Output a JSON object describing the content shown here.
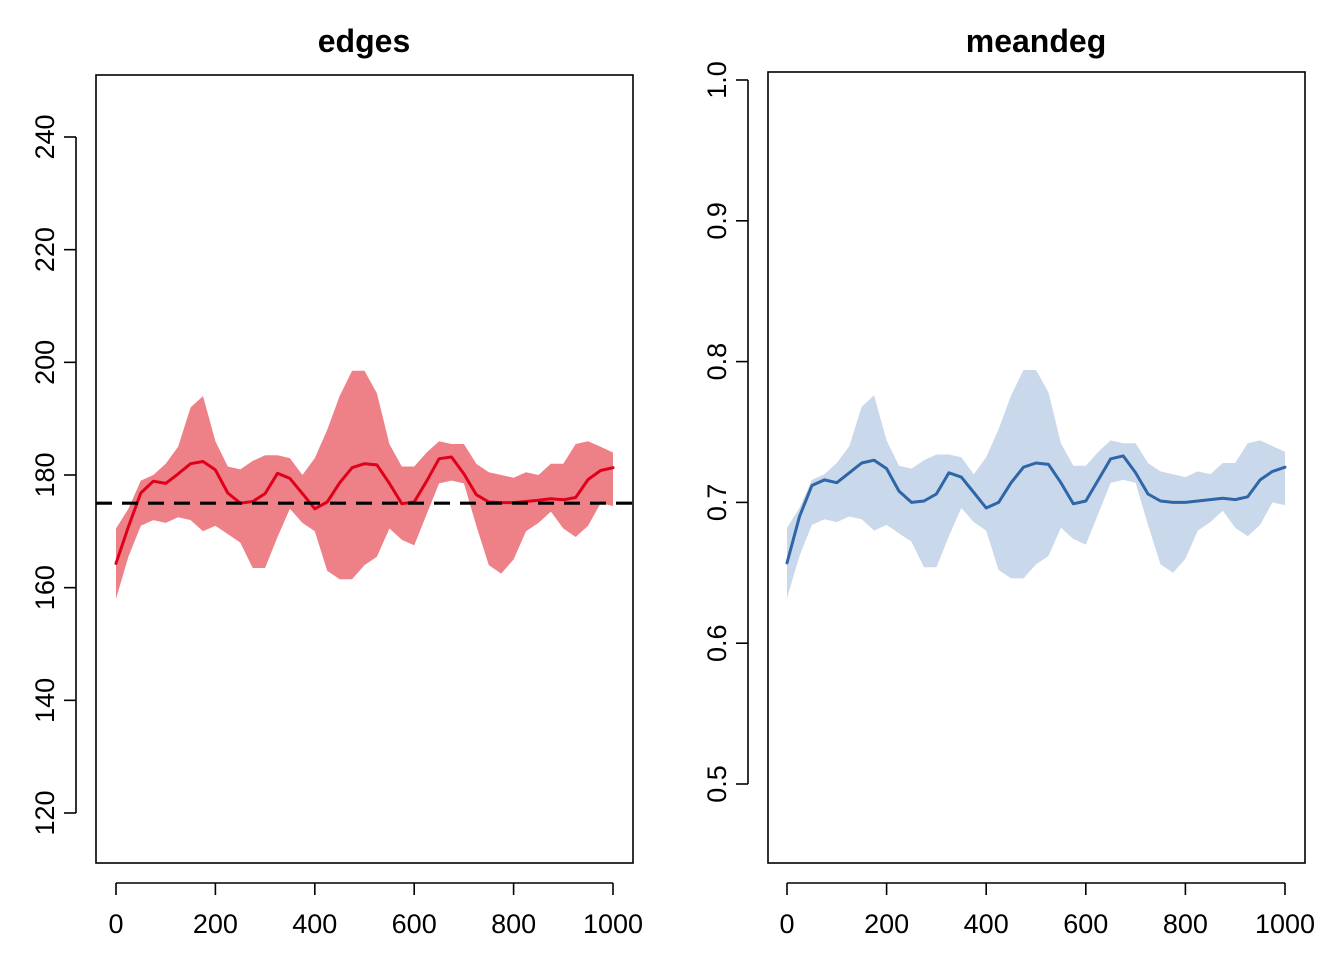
{
  "chart_data": [
    {
      "type": "line",
      "title": "edges",
      "xlabel": "",
      "ylabel": "",
      "xlim": [
        0,
        1000
      ],
      "ylim": [
        111,
        250
      ],
      "x_ticks": [
        "0",
        "200",
        "400",
        "600",
        "800",
        "1000"
      ],
      "y_ticks": [
        "120",
        "140",
        "160",
        "180",
        "200",
        "220",
        "240"
      ],
      "x_tick_values": [
        0,
        200,
        400,
        600,
        800,
        1000
      ],
      "y_tick_values": [
        120,
        140,
        160,
        180,
        200,
        220,
        240
      ],
      "band_color": "#ee8088",
      "line_color": "#e0001a",
      "target_line": {
        "y": 175,
        "color": "#000000",
        "style": "dashed"
      },
      "series": [
        {
          "x": [
            0,
            25,
            50,
            75,
            100,
            125,
            150,
            175,
            200,
            225,
            250,
            275,
            300,
            325,
            350,
            375,
            400,
            425,
            450,
            475,
            500,
            525,
            550,
            575,
            600,
            625,
            650,
            675,
            700,
            725,
            750,
            775,
            800,
            825,
            850,
            875,
            900,
            925,
            950,
            975,
            1000
          ],
          "mean": [
            164.3,
            170.8,
            176.8,
            178.9,
            178.5,
            180.2,
            182.0,
            182.4,
            180.9,
            176.8,
            175.0,
            175.3,
            176.7,
            180.3,
            179.4,
            176.7,
            174.0,
            175.2,
            178.6,
            181.3,
            182.0,
            181.8,
            178.5,
            174.9,
            175.2,
            178.9,
            182.9,
            183.2,
            180.2,
            176.5,
            175.2,
            175.1,
            175.1,
            175.3,
            175.5,
            175.8,
            175.6,
            176.0,
            179.2,
            180.8,
            181.3
          ],
          "upper": [
            170.5,
            174.0,
            179.0,
            180.0,
            182.0,
            185.0,
            192.0,
            194.0,
            186.0,
            181.5,
            181.0,
            182.5,
            183.5,
            183.5,
            183.0,
            180.0,
            183.0,
            188.0,
            194.0,
            198.5,
            198.5,
            194.5,
            185.5,
            181.5,
            181.5,
            184.0,
            186.0,
            185.5,
            185.5,
            182.0,
            180.5,
            180.0,
            179.5,
            180.5,
            180.0,
            182.0,
            182.0,
            185.5,
            186.0,
            185.0,
            184.0
          ],
          "lower": [
            158.0,
            165.5,
            171.0,
            172.0,
            171.5,
            172.5,
            172.0,
            170.0,
            171.0,
            169.5,
            168.0,
            163.5,
            163.5,
            169.0,
            174.0,
            171.5,
            170.0,
            163.0,
            161.5,
            161.5,
            164.0,
            165.5,
            170.5,
            168.5,
            167.5,
            173.0,
            178.5,
            179.0,
            178.5,
            171.0,
            164.0,
            162.5,
            165.0,
            170.0,
            171.5,
            173.5,
            170.5,
            169.0,
            171.0,
            175.0,
            174.5
          ]
        }
      ]
    },
    {
      "type": "line",
      "title": "meandeg",
      "xlabel": "",
      "ylabel": "",
      "xlim": [
        0,
        1000
      ],
      "ylim": [
        0.443,
        1.0
      ],
      "x_ticks": [
        "0",
        "200",
        "400",
        "600",
        "800",
        "1000"
      ],
      "y_ticks": [
        "0.5",
        "0.6",
        "0.7",
        "0.8",
        "0.9",
        "1.0"
      ],
      "x_tick_values": [
        0,
        200,
        400,
        600,
        800,
        1000
      ],
      "y_tick_values": [
        0.5,
        0.6,
        0.7,
        0.8,
        0.9,
        1.0
      ],
      "band_color": "#c9d8ea",
      "line_color": "#2e66a8",
      "series": [
        {
          "x": [
            0,
            25,
            50,
            75,
            100,
            125,
            150,
            175,
            200,
            225,
            250,
            275,
            300,
            325,
            350,
            375,
            400,
            425,
            450,
            475,
            500,
            525,
            550,
            575,
            600,
            625,
            650,
            675,
            700,
            725,
            750,
            775,
            800,
            825,
            850,
            875,
            900,
            925,
            950,
            975,
            1000
          ],
          "mean": [
            0.657,
            0.69,
            0.712,
            0.716,
            0.714,
            0.721,
            0.728,
            0.73,
            0.724,
            0.708,
            0.7,
            0.701,
            0.706,
            0.721,
            0.718,
            0.707,
            0.696,
            0.7,
            0.714,
            0.725,
            0.728,
            0.727,
            0.714,
            0.699,
            0.701,
            0.716,
            0.731,
            0.733,
            0.721,
            0.706,
            0.701,
            0.7,
            0.7,
            0.701,
            0.702,
            0.703,
            0.702,
            0.704,
            0.716,
            0.722,
            0.725
          ],
          "upper": [
            0.682,
            0.696,
            0.716,
            0.72,
            0.728,
            0.74,
            0.768,
            0.776,
            0.744,
            0.726,
            0.724,
            0.73,
            0.734,
            0.734,
            0.732,
            0.72,
            0.732,
            0.752,
            0.776,
            0.794,
            0.794,
            0.778,
            0.742,
            0.726,
            0.726,
            0.736,
            0.744,
            0.742,
            0.742,
            0.728,
            0.722,
            0.72,
            0.718,
            0.722,
            0.72,
            0.728,
            0.728,
            0.742,
            0.744,
            0.74,
            0.736
          ],
          "lower": [
            0.632,
            0.662,
            0.684,
            0.688,
            0.686,
            0.69,
            0.688,
            0.68,
            0.684,
            0.678,
            0.672,
            0.654,
            0.654,
            0.676,
            0.696,
            0.686,
            0.68,
            0.652,
            0.646,
            0.646,
            0.656,
            0.662,
            0.682,
            0.674,
            0.67,
            0.692,
            0.714,
            0.716,
            0.714,
            0.684,
            0.656,
            0.65,
            0.66,
            0.68,
            0.686,
            0.694,
            0.682,
            0.676,
            0.684,
            0.7,
            0.698
          ]
        }
      ]
    }
  ]
}
